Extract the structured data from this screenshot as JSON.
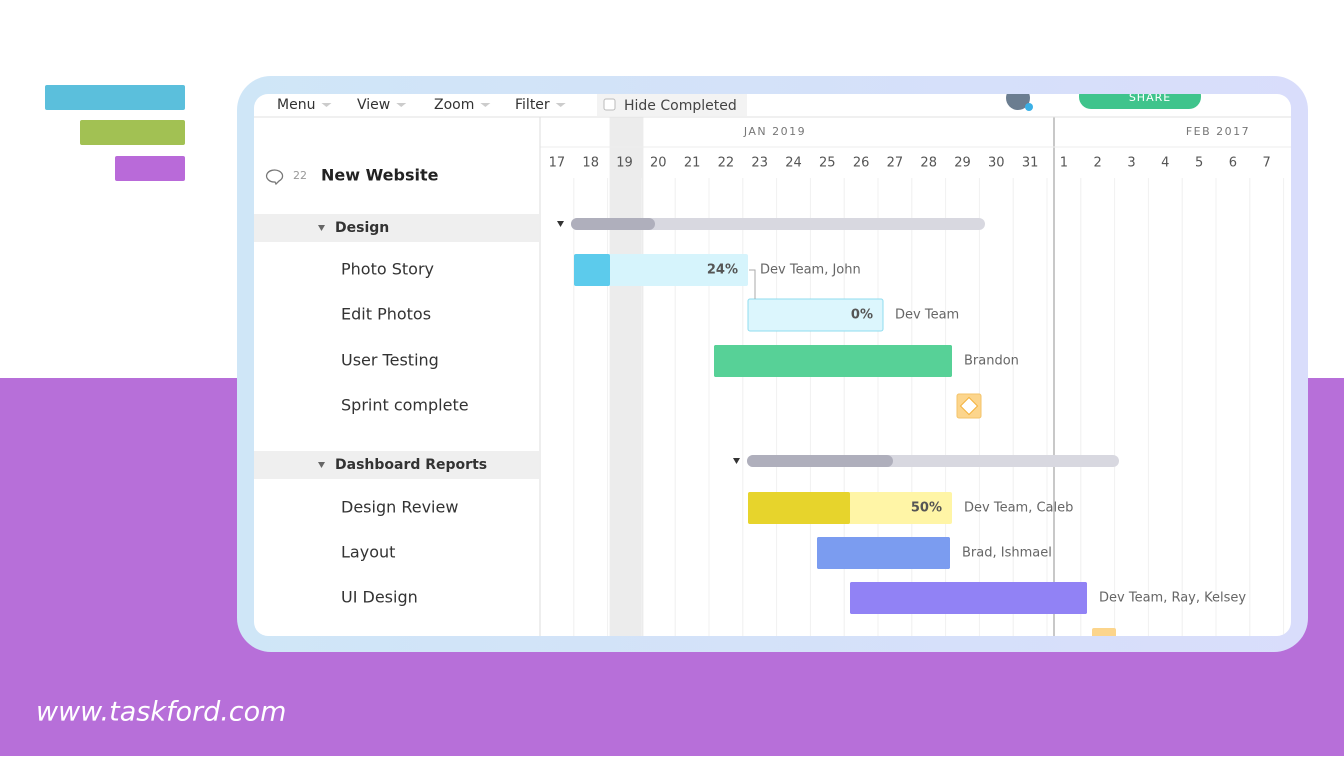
{
  "toolbar": {
    "menus": [
      "Menu",
      "View",
      "Zoom",
      "Filter"
    ],
    "hide_completed": "Hide Completed",
    "share": "SHARE"
  },
  "timeline": {
    "months": [
      "JAN 2019",
      "FEB 2017"
    ],
    "days": [
      "17",
      "18",
      "19",
      "20",
      "21",
      "22",
      "23",
      "24",
      "25",
      "26",
      "27",
      "28",
      "29",
      "30",
      "31",
      "1",
      "2",
      "3",
      "4",
      "5",
      "6",
      "7"
    ]
  },
  "project": {
    "comments": "22",
    "title": "New Website",
    "groups": [
      {
        "name": "Design",
        "tasks": [
          {
            "name": "Photo Story",
            "progress": "24%",
            "assignees": "Dev Team, John"
          },
          {
            "name": "Edit Photos",
            "progress": "0%",
            "assignees": "Dev Team"
          },
          {
            "name": "User Testing",
            "assignees": "Brandon"
          },
          {
            "name": "Sprint complete"
          }
        ]
      },
      {
        "name": "Dashboard Reports",
        "tasks": [
          {
            "name": "Design Review",
            "progress": "50%",
            "assignees": "Dev Team, Caleb"
          },
          {
            "name": "Layout",
            "assignees": "Brad, Ishmael"
          },
          {
            "name": "UI Design",
            "assignees": "Dev Team, Ray, Kelsey"
          }
        ]
      }
    ]
  },
  "footer": {
    "url": "www.taskford.com"
  }
}
